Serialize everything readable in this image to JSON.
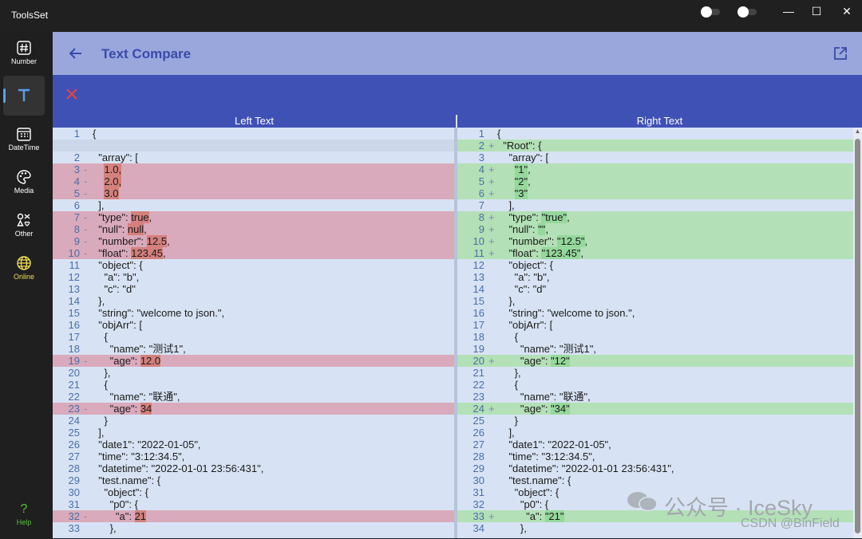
{
  "app": {
    "title": "ToolsSet"
  },
  "sidebar": {
    "items": [
      {
        "label": "Number",
        "icon": "hash-icon"
      },
      {
        "label": "",
        "icon": "text-icon"
      },
      {
        "label": "DateTime",
        "icon": "calendar-icon"
      },
      {
        "label": "Media",
        "icon": "palette-icon"
      },
      {
        "label": "Other",
        "icon": "other-icon"
      },
      {
        "label": "Online",
        "icon": "globe-icon"
      }
    ],
    "help_glyph": "?",
    "help_label": "Help"
  },
  "window_controls": {
    "minimize": "—",
    "maximize": "☐",
    "close": "✕"
  },
  "header": {
    "title": "Text Compare"
  },
  "columns": {
    "left": "Left Text",
    "right": "Right Text"
  },
  "colors": {
    "accent": "#3f51b5",
    "header": "#9aa7dd",
    "deleted": "#d9aabb",
    "added": "#b3e0b6",
    "online": "#f2df56",
    "help": "#57c43b"
  },
  "left_lines": [
    {
      "n": "1",
      "m": "",
      "t": "{"
    },
    {
      "n": "",
      "m": "",
      "t": "",
      "s": "gap"
    },
    {
      "n": "2",
      "m": "",
      "t": "  \"array\": ["
    },
    {
      "n": "3",
      "m": "-",
      "s": "del",
      "parts": [
        {
          "t": "    "
        },
        {
          "t": "1.0,",
          "h": 1
        }
      ]
    },
    {
      "n": "4",
      "m": "-",
      "s": "del",
      "parts": [
        {
          "t": "    "
        },
        {
          "t": "2.0,",
          "h": 1
        }
      ]
    },
    {
      "n": "5",
      "m": "-",
      "s": "del",
      "parts": [
        {
          "t": "    "
        },
        {
          "t": "3.0",
          "h": 1
        }
      ]
    },
    {
      "n": "6",
      "m": "",
      "t": "  ],"
    },
    {
      "n": "7",
      "m": "-",
      "s": "del",
      "parts": [
        {
          "t": "  \"type\": "
        },
        {
          "t": "true",
          "h": 1
        },
        {
          "t": ","
        }
      ]
    },
    {
      "n": "8",
      "m": "-",
      "s": "del",
      "parts": [
        {
          "t": "  \"null\": "
        },
        {
          "t": "null",
          "h": 1
        },
        {
          "t": ","
        }
      ]
    },
    {
      "n": "9",
      "m": "-",
      "s": "del",
      "parts": [
        {
          "t": "  \"number\": "
        },
        {
          "t": "12.5",
          "h": 1
        },
        {
          "t": ","
        }
      ]
    },
    {
      "n": "10",
      "m": "-",
      "s": "del",
      "parts": [
        {
          "t": "  \"float\": "
        },
        {
          "t": "123.45",
          "h": 1
        },
        {
          "t": ","
        }
      ]
    },
    {
      "n": "11",
      "m": "",
      "t": "  \"object\": {"
    },
    {
      "n": "12",
      "m": "",
      "t": "    \"a\": \"b\","
    },
    {
      "n": "13",
      "m": "",
      "t": "    \"c\": \"d\""
    },
    {
      "n": "14",
      "m": "",
      "t": "  },"
    },
    {
      "n": "15",
      "m": "",
      "t": "  \"string\": \"welcome to json.\","
    },
    {
      "n": "16",
      "m": "",
      "t": "  \"objArr\": ["
    },
    {
      "n": "17",
      "m": "",
      "t": "    {"
    },
    {
      "n": "18",
      "m": "",
      "t": "      \"name\": \"测试1\","
    },
    {
      "n": "19",
      "m": "-",
      "s": "del",
      "parts": [
        {
          "t": "      \"age\": "
        },
        {
          "t": "12.0",
          "h": 1
        }
      ]
    },
    {
      "n": "20",
      "m": "",
      "t": "    },"
    },
    {
      "n": "21",
      "m": "",
      "t": "    {"
    },
    {
      "n": "22",
      "m": "",
      "t": "      \"name\": \"联通\","
    },
    {
      "n": "23",
      "m": "-",
      "s": "del",
      "parts": [
        {
          "t": "      \"age\": "
        },
        {
          "t": "34",
          "h": 1
        }
      ]
    },
    {
      "n": "24",
      "m": "",
      "t": "    }"
    },
    {
      "n": "25",
      "m": "",
      "t": "  ],"
    },
    {
      "n": "26",
      "m": "",
      "t": "  \"date1\": \"2022-01-05\","
    },
    {
      "n": "27",
      "m": "",
      "t": "  \"time\": \"3:12:34.5\","
    },
    {
      "n": "28",
      "m": "",
      "t": "  \"datetime\": \"2022-01-01 23:56:431\","
    },
    {
      "n": "29",
      "m": "",
      "t": "  \"test.name\": {"
    },
    {
      "n": "30",
      "m": "",
      "t": "    \"object\": {"
    },
    {
      "n": "31",
      "m": "",
      "t": "      \"p0\": {"
    },
    {
      "n": "32",
      "m": "-",
      "s": "del",
      "parts": [
        {
          "t": "        \"a\": "
        },
        {
          "t": "21",
          "h": 1
        }
      ]
    },
    {
      "n": "33",
      "m": "",
      "t": "      },"
    }
  ],
  "right_lines": [
    {
      "n": "1",
      "m": "",
      "t": "{"
    },
    {
      "n": "2",
      "m": "+",
      "s": "add",
      "t": "  \"Root\": {"
    },
    {
      "n": "3",
      "m": "",
      "t": "    \"array\": ["
    },
    {
      "n": "4",
      "m": "+",
      "s": "add",
      "parts": [
        {
          "t": "      "
        },
        {
          "t": "\"1\"",
          "h": 1
        },
        {
          "t": ","
        }
      ]
    },
    {
      "n": "5",
      "m": "+",
      "s": "add",
      "parts": [
        {
          "t": "      "
        },
        {
          "t": "\"2\"",
          "h": 1
        },
        {
          "t": ","
        }
      ]
    },
    {
      "n": "6",
      "m": "+",
      "s": "add",
      "parts": [
        {
          "t": "      "
        },
        {
          "t": "\"3\"",
          "h": 1
        }
      ]
    },
    {
      "n": "7",
      "m": "",
      "t": "    ],"
    },
    {
      "n": "8",
      "m": "+",
      "s": "add",
      "parts": [
        {
          "t": "    \"type\": "
        },
        {
          "t": "\"true\"",
          "h": 1
        },
        {
          "t": ","
        }
      ]
    },
    {
      "n": "9",
      "m": "+",
      "s": "add",
      "parts": [
        {
          "t": "    \"null\": "
        },
        {
          "t": "\"\"",
          "h": 1
        },
        {
          "t": ","
        }
      ]
    },
    {
      "n": "10",
      "m": "+",
      "s": "add",
      "parts": [
        {
          "t": "    \"number\": "
        },
        {
          "t": "\"12.5\"",
          "h": 1
        },
        {
          "t": ","
        }
      ]
    },
    {
      "n": "11",
      "m": "+",
      "s": "add",
      "parts": [
        {
          "t": "    \"float\": "
        },
        {
          "t": "\"123.45\"",
          "h": 1
        },
        {
          "t": ","
        }
      ]
    },
    {
      "n": "12",
      "m": "",
      "t": "    \"object\": {"
    },
    {
      "n": "13",
      "m": "",
      "t": "      \"a\": \"b\","
    },
    {
      "n": "14",
      "m": "",
      "t": "      \"c\": \"d\""
    },
    {
      "n": "15",
      "m": "",
      "t": "    },"
    },
    {
      "n": "16",
      "m": "",
      "t": "    \"string\": \"welcome to json.\","
    },
    {
      "n": "17",
      "m": "",
      "t": "    \"objArr\": ["
    },
    {
      "n": "18",
      "m": "",
      "t": "      {"
    },
    {
      "n": "19",
      "m": "",
      "t": "        \"name\": \"测试1\","
    },
    {
      "n": "20",
      "m": "+",
      "s": "add",
      "parts": [
        {
          "t": "        \"age\": "
        },
        {
          "t": "\"12\"",
          "h": 1
        }
      ]
    },
    {
      "n": "21",
      "m": "",
      "t": "      },"
    },
    {
      "n": "22",
      "m": "",
      "t": "      {"
    },
    {
      "n": "23",
      "m": "",
      "t": "        \"name\": \"联通\","
    },
    {
      "n": "24",
      "m": "+",
      "s": "add",
      "parts": [
        {
          "t": "        \"age\": "
        },
        {
          "t": "\"34\"",
          "h": 1
        }
      ]
    },
    {
      "n": "25",
      "m": "",
      "t": "      }"
    },
    {
      "n": "26",
      "m": "",
      "t": "    ],"
    },
    {
      "n": "27",
      "m": "",
      "t": "    \"date1\": \"2022-01-05\","
    },
    {
      "n": "28",
      "m": "",
      "t": "    \"time\": \"3:12:34.5\","
    },
    {
      "n": "29",
      "m": "",
      "t": "    \"datetime\": \"2022-01-01 23:56:431\","
    },
    {
      "n": "30",
      "m": "",
      "t": "    \"test.name\": {"
    },
    {
      "n": "31",
      "m": "",
      "t": "      \"object\": {"
    },
    {
      "n": "32",
      "m": "",
      "t": "        \"p0\": {"
    },
    {
      "n": "33",
      "m": "+",
      "s": "add",
      "parts": [
        {
          "t": "          \"a\": "
        },
        {
          "t": "\"21\"",
          "h": 1
        }
      ]
    },
    {
      "n": "34",
      "m": "",
      "t": "        },"
    }
  ],
  "watermark": {
    "text": "公众号 · IceSky",
    "credit": "CSDN @BinField"
  }
}
